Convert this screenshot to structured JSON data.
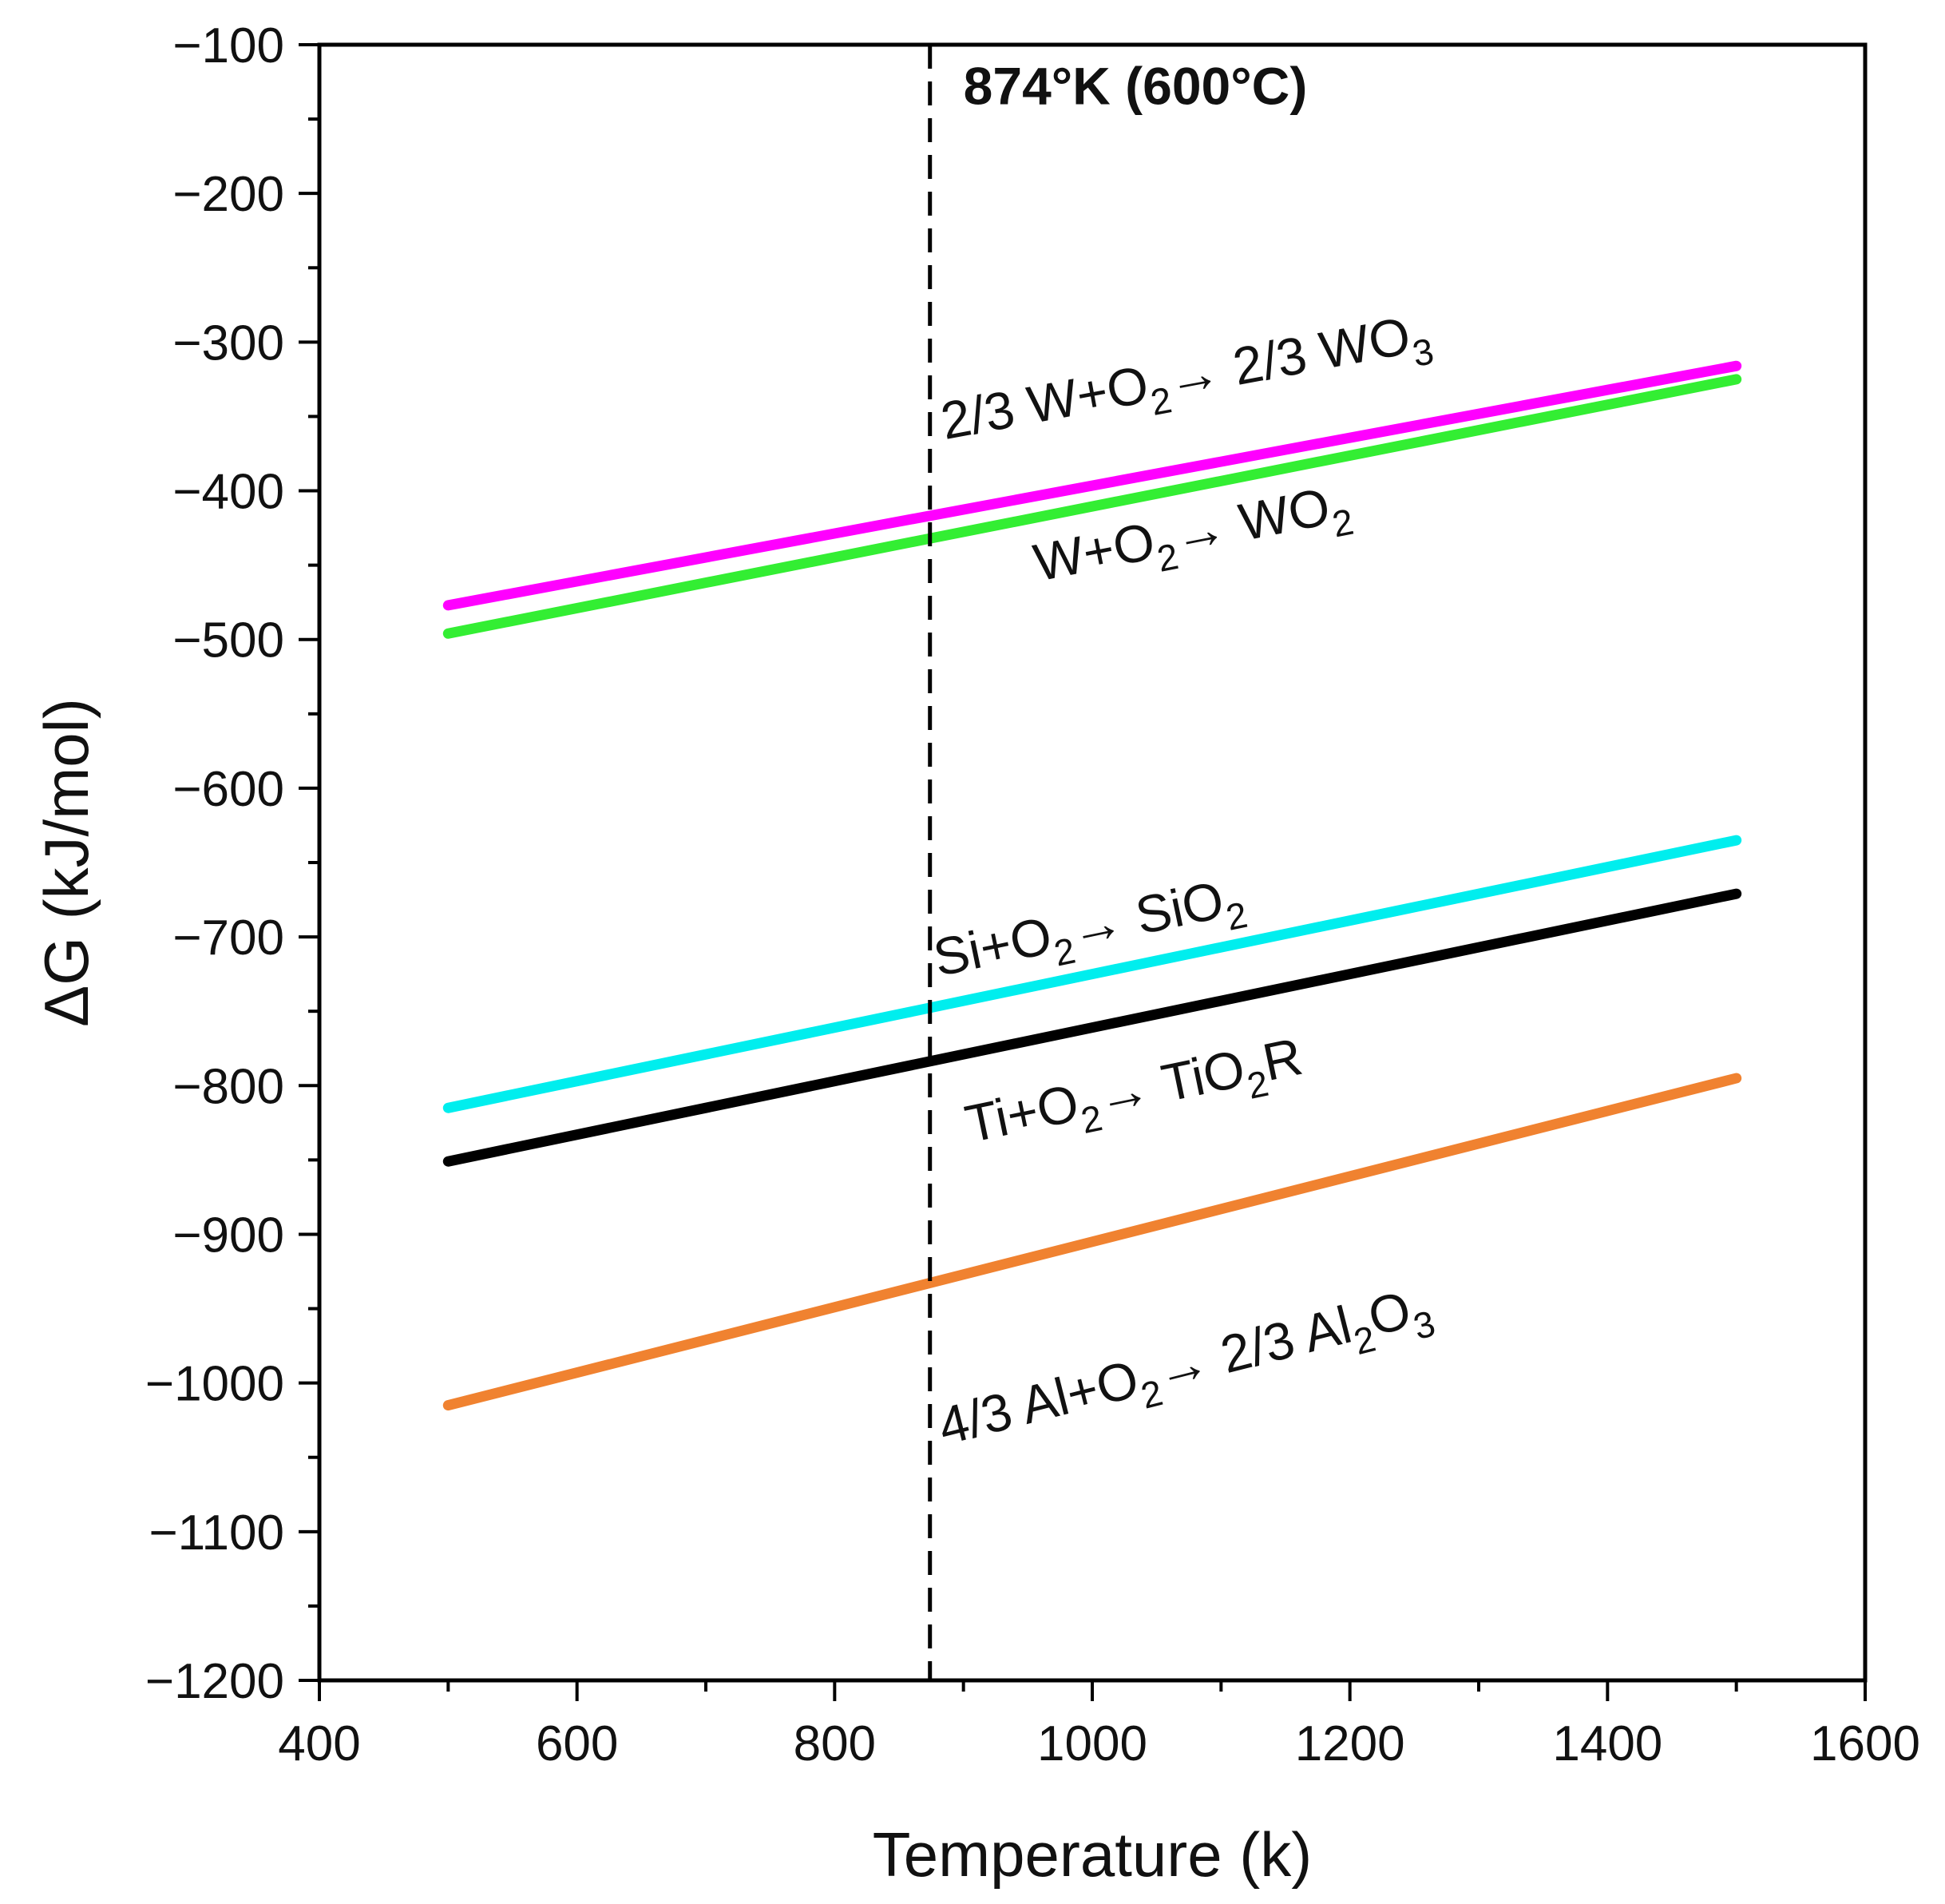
{
  "chart_data": {
    "type": "line",
    "title": "",
    "xlabel": "Temperature (k)",
    "ylabel": "ΔG (kJ/mol)",
    "xlim": [
      400,
      1600
    ],
    "ylim": [
      -1200,
      -100
    ],
    "x_ticks": [
      400,
      600,
      800,
      1000,
      1200,
      1400,
      1600
    ],
    "y_ticks": [
      -100,
      -200,
      -300,
      -400,
      -500,
      -600,
      -700,
      -800,
      -900,
      -1000,
      -1100,
      -1200
    ],
    "x_tick_labels": [
      "400",
      "600",
      "800",
      "1000",
      "1200",
      "1400",
      "1600"
    ],
    "y_tick_labels": [
      "−100",
      "−200",
      "−300",
      "−400",
      "−500",
      "−600",
      "−700",
      "−800",
      "−900",
      "−1000",
      "−1100",
      "−1200"
    ],
    "grid": false,
    "series": [
      {
        "name": "2/3 W+O2 → 2/3 WO3",
        "label_parts": [
          [
            "2/3 W+O",
            ""
          ],
          [
            "2",
            "sub"
          ],
          [
            "→ 2/3 WO",
            ""
          ],
          [
            "3",
            "sub"
          ]
        ],
        "color": "#ff00ff",
        "x": [
          500,
          1500
        ],
        "y": [
          -477,
          -316
        ],
        "label_at": {
          "x": 1075,
          "y": -335
        }
      },
      {
        "name": "W+O2 → WO2",
        "label_parts": [
          [
            "W+O",
            ""
          ],
          [
            "2",
            "sub"
          ],
          [
            "→ WO",
            ""
          ],
          [
            "2",
            "sub"
          ]
        ],
        "color": "#33ee33",
        "x": [
          500,
          1500
        ],
        "y": [
          -496,
          -325
        ],
        "label_at": {
          "x": 1080,
          "y": -440
        }
      },
      {
        "name": "Si+O2 → SiO2",
        "label_parts": [
          [
            "Si+O",
            ""
          ],
          [
            "2",
            "sub"
          ],
          [
            "→ SiO",
            ""
          ],
          [
            "2",
            "sub"
          ]
        ],
        "color": "#00eeee",
        "x": [
          500,
          1500
        ],
        "y": [
          -815,
          -635
        ],
        "label_at": {
          "x": 1000,
          "y": -705
        }
      },
      {
        "name": "Ti+O2 → TiO2R",
        "label_parts": [
          [
            "Ti+O",
            ""
          ],
          [
            "2",
            "sub"
          ],
          [
            "→ TiO",
            ""
          ],
          [
            "2",
            "sub"
          ],
          [
            "R",
            ""
          ]
        ],
        "color": "#000000",
        "x": [
          500,
          1500
        ],
        "y": [
          -851,
          -671
        ],
        "label_at": {
          "x": 1035,
          "y": -815
        }
      },
      {
        "name": "4/3 Al+O2 → 2/3 Al2O3",
        "label_parts": [
          [
            "4/3 Al+O",
            ""
          ],
          [
            "2",
            "sub"
          ],
          [
            "→ 2/3 Al",
            ""
          ],
          [
            "2",
            "sub"
          ],
          [
            "O",
            ""
          ],
          [
            "3",
            "sub"
          ]
        ],
        "color": "#f08230",
        "x": [
          500,
          1500
        ],
        "y": [
          -1015,
          -795
        ],
        "label_at": {
          "x": 1075,
          "y": -1000
        }
      }
    ],
    "annotations": [
      {
        "type": "vline",
        "x": 874,
        "style": "dashed",
        "color": "#000000",
        "text": "874°K (600°C)",
        "text_at": {
          "x": 900,
          "y": -140
        }
      }
    ]
  }
}
